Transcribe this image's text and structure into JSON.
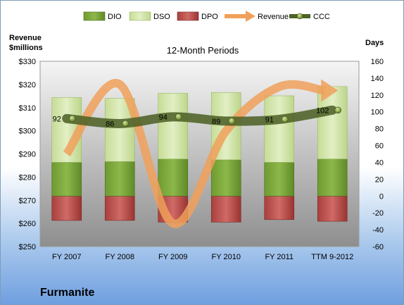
{
  "chart_data": {
    "type": "bar",
    "title": "12-Month Periods",
    "company": "Furmanite",
    "categories": [
      "FY 2007",
      "FY 2008",
      "FY 2009",
      "FY 2010",
      "FY 2011",
      "TTM 9-2012"
    ],
    "left_axis": {
      "label_line1": "Revenue",
      "label_line2": "$millions",
      "min": 250,
      "max": 330,
      "step": 10,
      "prefix": "$"
    },
    "right_axis": {
      "label": "Days",
      "min": -60,
      "max": 160,
      "step": 20
    },
    "series": [
      {
        "name": "DIO",
        "kind": "stacked-bar",
        "axis": "days",
        "values": [
          40,
          41,
          44,
          43,
          40,
          44
        ],
        "color": "#77a33a"
      },
      {
        "name": "DSO",
        "kind": "stacked-bar",
        "axis": "days",
        "values": [
          77,
          75,
          78,
          80,
          79,
          86
        ],
        "color": "#cfe3a3"
      },
      {
        "name": "DPO",
        "kind": "negative-bar",
        "axis": "days",
        "values": [
          -29,
          -29,
          -31,
          -31,
          -28,
          -30
        ],
        "color": "#c0504d"
      },
      {
        "name": "Revenue",
        "kind": "line",
        "axis": "revenue",
        "values": [
          290,
          320,
          260,
          300,
          319,
          318
        ],
        "color": "#f4a460"
      },
      {
        "name": "CCC",
        "kind": "line",
        "axis": "days",
        "values": [
          92,
          86,
          94,
          89,
          91,
          102
        ],
        "color": "#4f6228"
      }
    ]
  }
}
